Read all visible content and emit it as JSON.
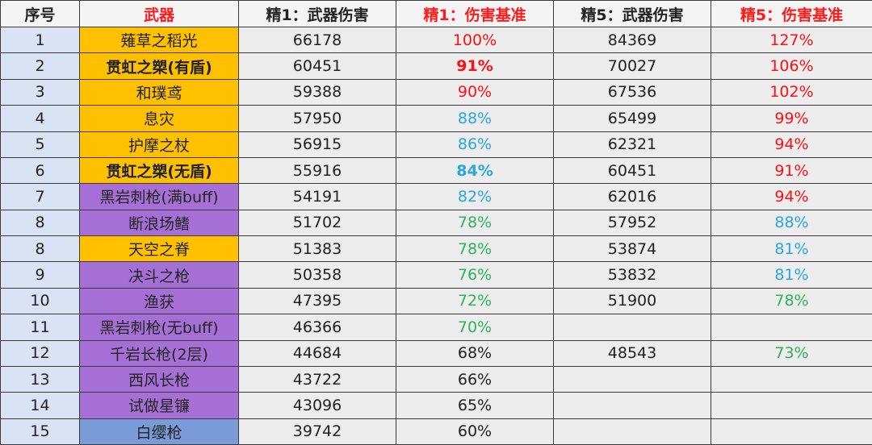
{
  "table": {
    "header": [
      "序号",
      "武器",
      "精1：武器伤害",
      "精1：伤害基准",
      "精5：武器伤害",
      "精5：伤害基准"
    ],
    "rows": [
      [
        "1",
        "薙草之稻光",
        "66178",
        "100%",
        "84369",
        "127%"
      ],
      [
        "2",
        "贯虹之槊(有盾)",
        "60451",
        "91%",
        "70027",
        "106%"
      ],
      [
        "3",
        "和璞鸢",
        "59388",
        "90%",
        "67536",
        "102%"
      ],
      [
        "4",
        "息灾",
        "57950",
        "88%",
        "65499",
        "99%"
      ],
      [
        "5",
        "护摩之杖",
        "56915",
        "86%",
        "62321",
        "94%"
      ],
      [
        "6",
        "贯虹之槊(无盾)",
        "55916",
        "84%",
        "60451",
        "91%"
      ],
      [
        "7",
        "黑岩刺枪(满buff)",
        "54191",
        "82%",
        "62016",
        "94%"
      ],
      [
        "8",
        "断浪场鳍",
        "51702",
        "78%",
        "57952",
        "88%"
      ],
      [
        "8",
        "天空之脊",
        "51383",
        "78%",
        "53874",
        "81%"
      ],
      [
        "9",
        "决斗之枪",
        "50358",
        "76%",
        "53832",
        "81%"
      ],
      [
        "10",
        "渔获",
        "47395",
        "72%",
        "51900",
        "78%"
      ],
      [
        "11",
        "黑岩刺枪(无buff)",
        "46366",
        "70%",
        null,
        null
      ],
      [
        "12",
        "千岩长枪(2层)",
        "44684",
        "68%",
        "48543",
        "73%"
      ],
      [
        "13",
        "西风长枪",
        "43722",
        "66%",
        null,
        null
      ],
      [
        "14",
        "试做星镰",
        "43096",
        "65%",
        null,
        null
      ],
      [
        "15",
        "白缨枪",
        "39742",
        "60%",
        null,
        null
      ]
    ]
  }
}
